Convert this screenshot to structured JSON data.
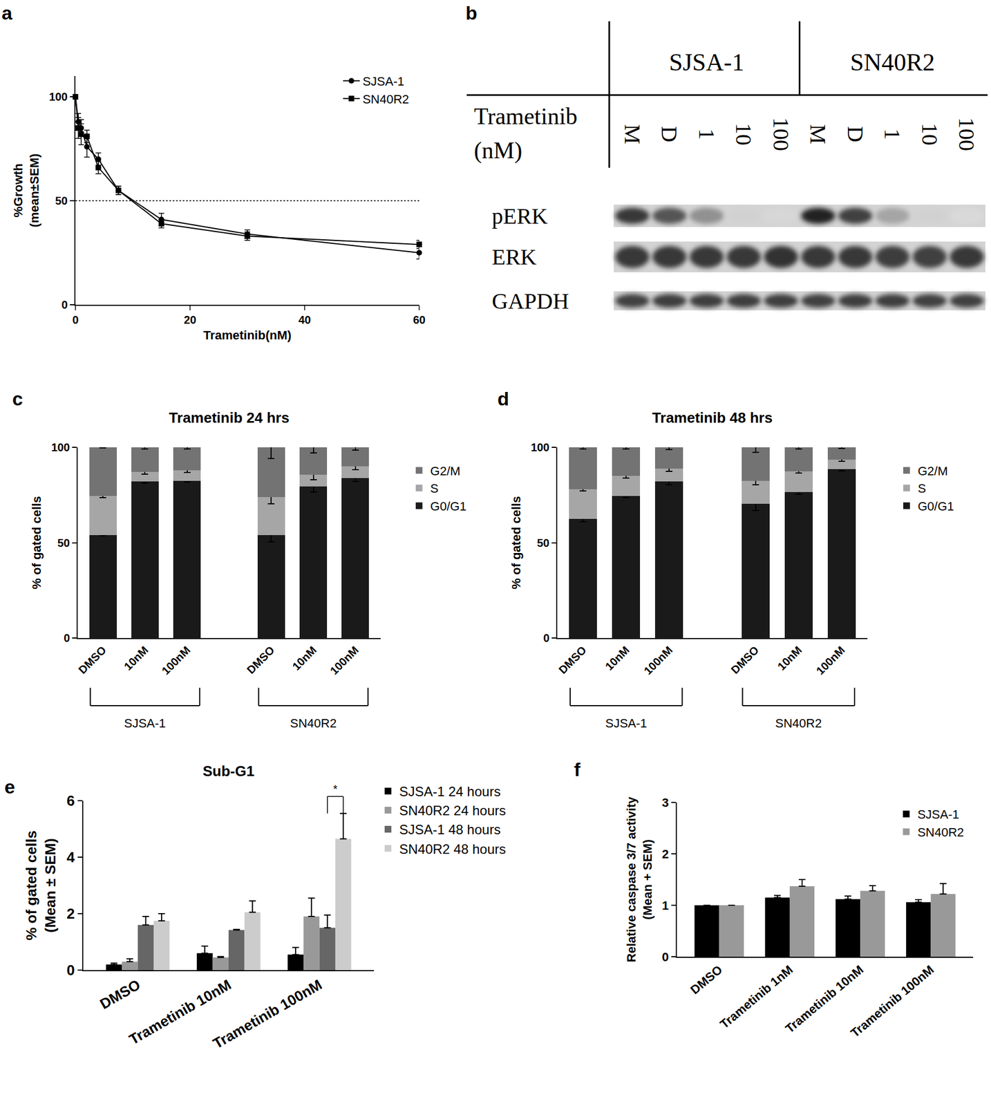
{
  "chart_data": [
    {
      "panel": "a",
      "type": "line",
      "x": [
        0,
        0.5,
        1,
        2,
        4,
        7.5,
        15,
        30,
        60
      ],
      "series": [
        {
          "name": "SJSA-1",
          "color": "#000000",
          "marker": "circle",
          "values": [
            100,
            88,
            85,
            76,
            70,
            55,
            41,
            34,
            25
          ],
          "errors": [
            0,
            4,
            4,
            5,
            3,
            2,
            3,
            2,
            3
          ]
        },
        {
          "name": "SN40R2",
          "color": "#000000",
          "marker": "square",
          "values": [
            100,
            85,
            82,
            81,
            66,
            55,
            39,
            33,
            29
          ],
          "errors": [
            0,
            5,
            5,
            3,
            3,
            2,
            2,
            2,
            2
          ]
        }
      ],
      "x_label": "Trametinib(nM)",
      "y_label": "%Growth\n(mean±SEM)",
      "xlim": [
        0,
        60
      ],
      "xticks": [
        0,
        20,
        40,
        60
      ],
      "ylim": [
        0,
        110
      ],
      "yticks": [
        0,
        50,
        100
      ],
      "reference_line": 50,
      "legend": "upper right",
      "grid": false
    },
    {
      "panel": "c",
      "type": "bar",
      "stacked": true,
      "title": "Trametinib 24 hrs",
      "categories": [
        "DMSO",
        "10nM",
        "100nM",
        "DMSO",
        "10nM",
        "100nM"
      ],
      "groups": [
        "SJSA-1",
        "SN40R2"
      ],
      "series": [
        {
          "name": "G0/G1",
          "color": "#1a1a1a",
          "values": [
            54,
            82,
            82.5,
            54,
            79.5,
            84
          ],
          "errors": [
            0.3,
            0.8,
            0.8,
            3.5,
            3,
            2
          ]
        },
        {
          "name": "S",
          "color": "#a6a6a6",
          "values": [
            20.5,
            5,
            5.5,
            20,
            6,
            6
          ],
          "errors": [
            0.8,
            1.2,
            1.2,
            3.5,
            2.5,
            1.8
          ]
        },
        {
          "name": "G2/M",
          "color": "#737373",
          "values": [
            25.5,
            13,
            12,
            26,
            14.5,
            10
          ],
          "errors": [
            0.3,
            1,
            1,
            6,
            3,
            1.5
          ]
        }
      ],
      "y_label": "% of gated cells",
      "ylim": [
        0,
        100
      ],
      "yticks": [
        0,
        50,
        100
      ],
      "legend": "right",
      "grid": false
    },
    {
      "panel": "d",
      "type": "bar",
      "stacked": true,
      "title": "Trametinib 48 hrs",
      "categories": [
        "DMSO",
        "10nM",
        "100nM",
        "DMSO",
        "10nM",
        "100nM"
      ],
      "groups": [
        "SJSA-1",
        "SN40R2"
      ],
      "series": [
        {
          "name": "G0/G1",
          "color": "#1a1a1a",
          "values": [
            62.5,
            74.5,
            82,
            70.5,
            76.5,
            88.5
          ],
          "errors": [
            1.5,
            0.8,
            1.5,
            3.5,
            1.2,
            0.8
          ]
        },
        {
          "name": "S",
          "color": "#a6a6a6",
          "values": [
            15.5,
            10.5,
            7,
            12,
            11,
            5
          ],
          "errors": [
            1,
            1,
            1.5,
            2,
            1,
            0.8
          ]
        },
        {
          "name": "G2/M",
          "color": "#737373",
          "values": [
            22,
            15,
            11,
            17.5,
            12.5,
            6.5
          ],
          "errors": [
            1,
            0.8,
            1.2,
            2.5,
            0.8,
            0.5
          ]
        }
      ],
      "y_label": "% of gated cells",
      "ylim": [
        0,
        100
      ],
      "yticks": [
        0,
        50,
        100
      ],
      "legend": "right",
      "grid": false
    },
    {
      "panel": "e",
      "type": "bar",
      "title": "Sub-G1",
      "categories": [
        "DMSO",
        "Trametinib 10nM",
        "Trametinib 100nM"
      ],
      "series": [
        {
          "name": "SJSA-1 24 hours",
          "color": "#000000",
          "values": [
            0.2,
            0.6,
            0.55
          ],
          "errors": [
            0.05,
            0.25,
            0.25
          ]
        },
        {
          "name": "SN40R2 24 hours",
          "color": "#999999",
          "values": [
            0.3,
            0.45,
            1.9
          ],
          "errors": [
            0.1,
            0.03,
            0.65
          ]
        },
        {
          "name": "SJSA-1 48 hours",
          "color": "#666666",
          "values": [
            1.6,
            1.42,
            1.5
          ],
          "errors": [
            0.3,
            0.02,
            0.45
          ]
        },
        {
          "name": "SN40R2 48 hours",
          "color": "#cccccc",
          "values": [
            1.75,
            2.05,
            4.65
          ],
          "errors": [
            0.25,
            0.4,
            0.9
          ]
        }
      ],
      "y_label": "% of gated cells\n(Mean ± SEM)",
      "ylim": [
        0,
        6
      ],
      "yticks": [
        0,
        2,
        4,
        6
      ],
      "annotations": [
        {
          "text": "*",
          "category": 2,
          "series": [
            "SJSA-1 48 hours",
            "SN40R2 48 hours"
          ]
        }
      ],
      "legend": "right",
      "grid": false
    },
    {
      "panel": "f",
      "type": "bar",
      "categories": [
        "DMSO",
        "Trametinib 1nM",
        "Trametinib 10nM",
        "Trametinib 100nM"
      ],
      "series": [
        {
          "name": "SJSA-1",
          "color": "#000000",
          "values": [
            1.0,
            1.15,
            1.12,
            1.06
          ],
          "errors": [
            0,
            0.04,
            0.06,
            0.05
          ]
        },
        {
          "name": "SN40R2",
          "color": "#999999",
          "values": [
            1.0,
            1.37,
            1.28,
            1.22
          ],
          "errors": [
            0,
            0.13,
            0.1,
            0.2
          ]
        }
      ],
      "y_label": "Relative caspase 3/7 activity\n(Mean + SEM)",
      "ylim": [
        0,
        3
      ],
      "yticks": [
        0,
        1,
        2,
        3
      ],
      "legend": "upper right",
      "grid": false
    }
  ],
  "blot": {
    "panel": "b",
    "condition_label": "Trametinib\n(nM)",
    "groups": [
      {
        "name": "SJSA-1",
        "lanes": [
          "M",
          "D",
          "1",
          "10",
          "100"
        ]
      },
      {
        "name": "SN40R2",
        "lanes": [
          "M",
          "D",
          "1",
          "10",
          "100"
        ]
      }
    ],
    "rows": [
      {
        "name": "pERK",
        "band_intensity": [
          0.85,
          0.7,
          0.4,
          0.08,
          0.05,
          0.95,
          0.8,
          0.3,
          0.08,
          0.04
        ]
      },
      {
        "name": "ERK",
        "band_intensity": [
          0.85,
          0.85,
          0.85,
          0.85,
          0.88,
          0.85,
          0.85,
          0.82,
          0.8,
          0.85
        ]
      },
      {
        "name": "GAPDH",
        "band_intensity": [
          0.8,
          0.82,
          0.82,
          0.82,
          0.82,
          0.8,
          0.82,
          0.82,
          0.8,
          0.8
        ]
      }
    ]
  }
}
